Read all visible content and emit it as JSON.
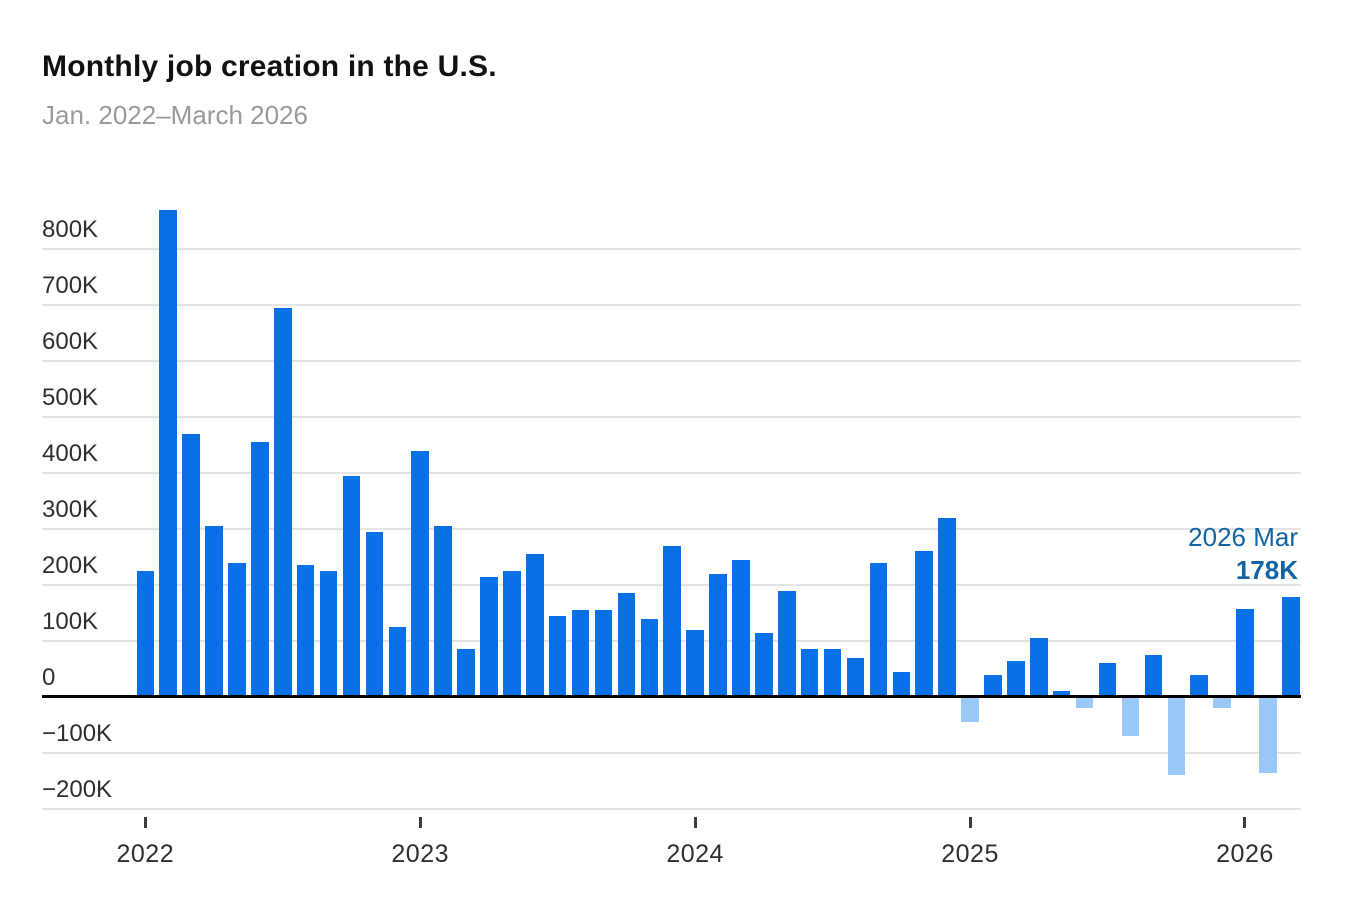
{
  "header": {
    "title": "Monthly job creation in the U.S.",
    "subtitle": "Jan. 2022–March 2026"
  },
  "chart_data": {
    "type": "bar",
    "title": "Monthly job creation in the U.S.",
    "subtitle": "Jan. 2022–March 2026",
    "value_unit": "jobs, thousands (K)",
    "categories": [
      "Jan 2022",
      "Feb 2022",
      "Mar 2022",
      "Apr 2022",
      "May 2022",
      "Jun 2022",
      "Jul 2022",
      "Aug 2022",
      "Sep 2022",
      "Oct 2022",
      "Nov 2022",
      "Dec 2022",
      "Jan 2023",
      "Feb 2023",
      "Mar 2023",
      "Apr 2023",
      "May 2023",
      "Jun 2023",
      "Jul 2023",
      "Aug 2023",
      "Sep 2023",
      "Oct 2023",
      "Nov 2023",
      "Dec 2023",
      "Jan 2024",
      "Feb 2024",
      "Mar 2024",
      "Apr 2024",
      "May 2024",
      "Jun 2024",
      "Jul 2024",
      "Aug 2024",
      "Sep 2024",
      "Oct 2024",
      "Nov 2024",
      "Dec 2024",
      "Jan 2025",
      "Feb 2025",
      "Mar 2025",
      "Apr 2025",
      "May 2025",
      "Jun 2025",
      "Jul 2025",
      "Aug 2025",
      "Sep 2025",
      "Oct 2025",
      "Nov 2025",
      "Dec 2025",
      "Jan 2026",
      "Feb 2026",
      "Mar 2026"
    ],
    "values": [
      225,
      870,
      470,
      305,
      240,
      455,
      695,
      235,
      225,
      395,
      295,
      125,
      440,
      305,
      85,
      215,
      225,
      255,
      145,
      155,
      155,
      185,
      140,
      270,
      120,
      220,
      245,
      115,
      190,
      85,
      85,
      70,
      240,
      45,
      260,
      320,
      -45,
      40,
      65,
      105,
      10,
      -20,
      60,
      -70,
      75,
      -140,
      40,
      -20,
      158,
      -135,
      178
    ],
    "ylim": [
      -250,
      880
    ],
    "y_ticks": [
      {
        "label": "800K",
        "value": 800
      },
      {
        "label": "700K",
        "value": 700
      },
      {
        "label": "600K",
        "value": 600
      },
      {
        "label": "500K",
        "value": 500
      },
      {
        "label": "400K",
        "value": 400
      },
      {
        "label": "300K",
        "value": 300
      },
      {
        "label": "200K",
        "value": 200
      },
      {
        "label": "100K",
        "value": 100
      },
      {
        "label": "0",
        "value": 0
      },
      {
        "label": "−100K",
        "value": -100
      },
      {
        "label": "−200K",
        "value": -200
      }
    ],
    "x_ticks": [
      {
        "label": "2022",
        "month_index": 0
      },
      {
        "label": "2023",
        "month_index": 12
      },
      {
        "label": "2024",
        "month_index": 24
      },
      {
        "label": "2025",
        "month_index": 36
      },
      {
        "label": "2026",
        "month_index": 48
      }
    ],
    "grid": true,
    "legend": "none",
    "annotation": {
      "target": "Mar 2026",
      "line1": "2026 Mar",
      "line2": "178K"
    },
    "colors": {
      "positive_bar": "#0a70e6",
      "negative_bar": "#9ac8f8",
      "annotation_text": "#1264a4",
      "gridline": "#e3e3e3",
      "zero_line": "#000000"
    }
  }
}
